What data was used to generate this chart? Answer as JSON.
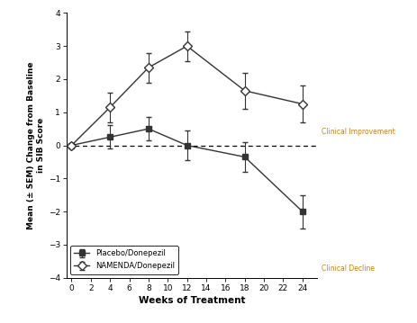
{
  "weeks": [
    0,
    4,
    8,
    12,
    18,
    24
  ],
  "placebo_means": [
    0.0,
    0.25,
    0.5,
    0.0,
    -0.35,
    -2.0
  ],
  "placebo_errors": [
    0.05,
    0.35,
    0.35,
    0.45,
    0.45,
    0.5
  ],
  "namenda_means": [
    0.0,
    1.15,
    2.35,
    3.0,
    1.65,
    1.25
  ],
  "namenda_errors": [
    0.05,
    0.45,
    0.45,
    0.45,
    0.55,
    0.55
  ],
  "xlabel": "Weeks of Treatment",
  "ylabel": "Mean (± SEM) Change from Baseline\nin SIB Score",
  "xlim": [
    -0.5,
    25.5
  ],
  "ylim": [
    -4,
    4
  ],
  "xticks": [
    0,
    2,
    4,
    6,
    8,
    10,
    12,
    14,
    16,
    18,
    20,
    22,
    24
  ],
  "yticks": [
    -4,
    -3,
    -2,
    -1,
    0,
    1,
    2,
    3,
    4
  ],
  "legend_placebo": "Placebo/Donepezil",
  "legend_namenda": "NAMENDA/Donepezil",
  "label_improvement": "Clinical Improvement",
  "label_decline": "Clinical Decline",
  "line_color": "#333333",
  "bg_color": "#ffffff",
  "annotation_color": "#c8821a"
}
